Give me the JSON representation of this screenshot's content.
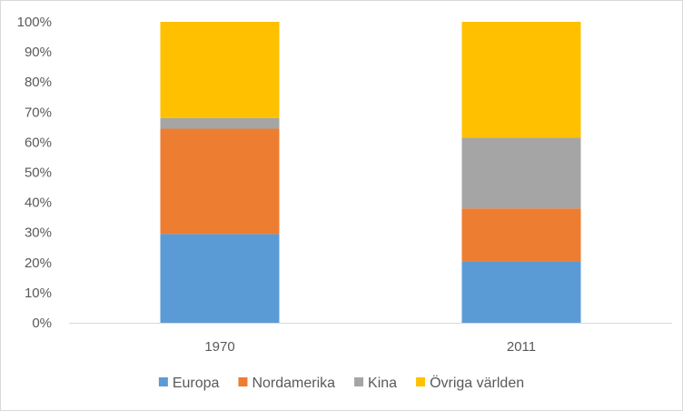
{
  "chart_data": {
    "type": "bar",
    "stacked": true,
    "percent": true,
    "title": "",
    "xlabel": "",
    "ylabel": "",
    "categories": [
      "1970",
      "2011"
    ],
    "series": [
      {
        "name": "Europa",
        "color": "#5b9bd5",
        "values": [
          29.5,
          20.5
        ]
      },
      {
        "name": "Nordamerika",
        "color": "#ed7d31",
        "values": [
          35,
          17.5
        ]
      },
      {
        "name": "Kina",
        "color": "#a5a5a5",
        "values": [
          3.5,
          23.5
        ]
      },
      {
        "name": "Övriga världen",
        "color": "#ffc000",
        "values": [
          32,
          38.5
        ]
      }
    ],
    "ylim": [
      0,
      100
    ],
    "yticks": [
      "0%",
      "10%",
      "20%",
      "30%",
      "40%",
      "50%",
      "60%",
      "70%",
      "80%",
      "90%",
      "100%"
    ],
    "grid": false,
    "legend_position": "bottom"
  }
}
